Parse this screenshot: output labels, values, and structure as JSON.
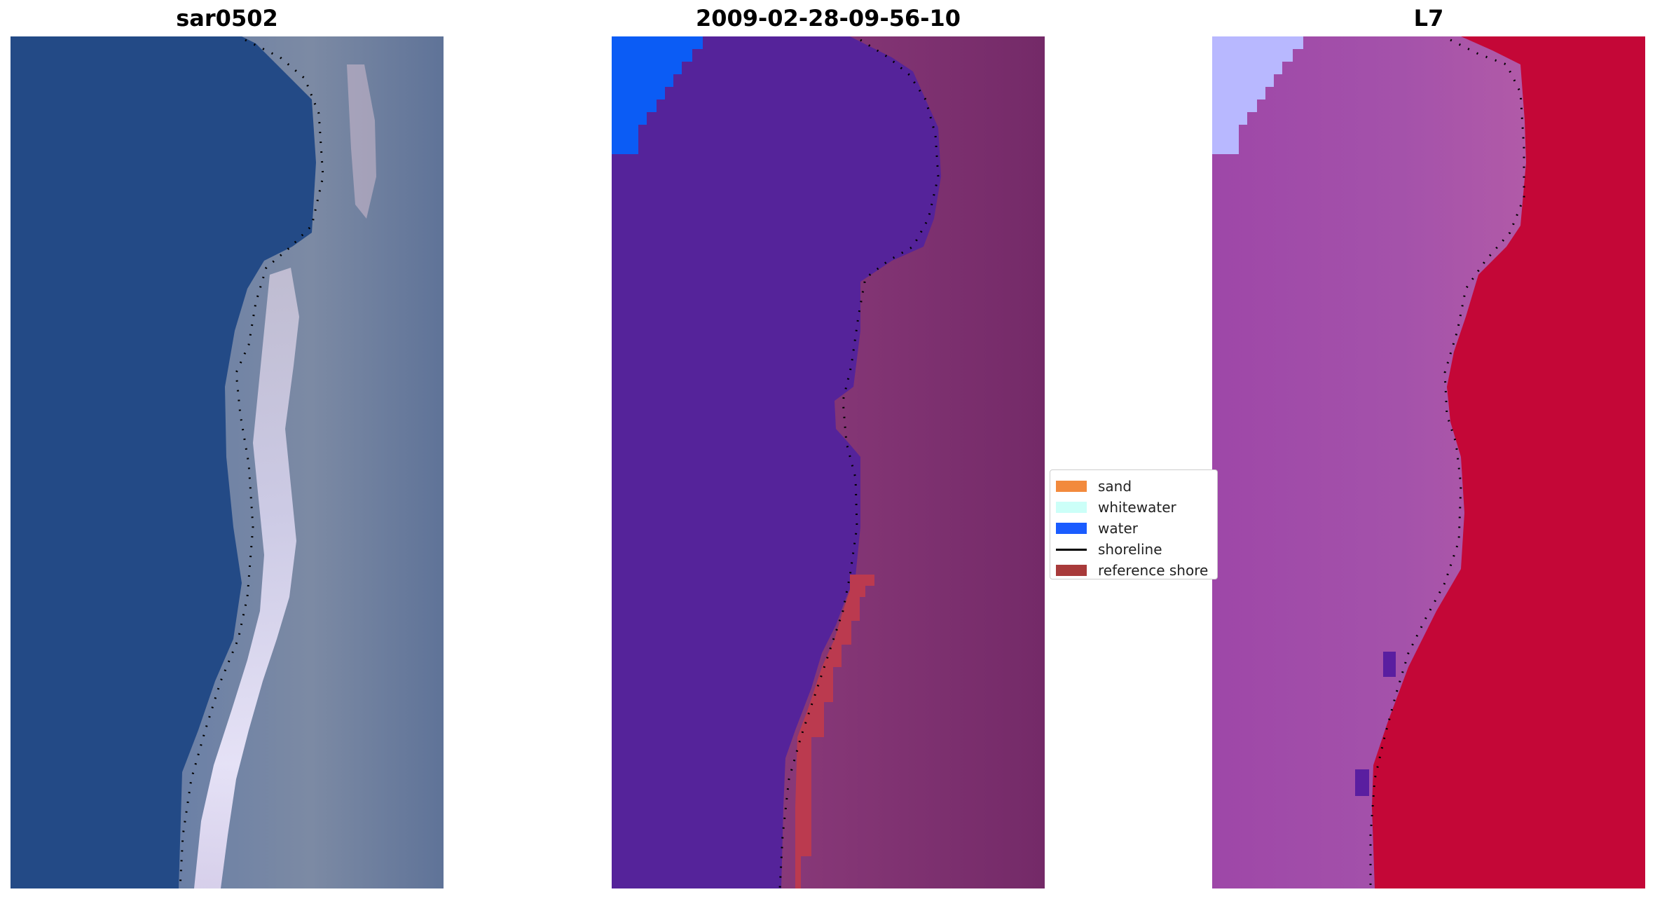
{
  "panels": [
    {
      "title": "sar0502"
    },
    {
      "title": "2009-02-28-09-56-10"
    },
    {
      "title": "L7"
    }
  ],
  "legend": {
    "items": [
      {
        "label": "sand",
        "color": "#f28a3d",
        "kind": "patch"
      },
      {
        "label": "whitewater",
        "color": "#ccfff8",
        "kind": "patch"
      },
      {
        "label": "water",
        "color": "#1a5cff",
        "kind": "patch"
      },
      {
        "label": "shoreline",
        "color": "#000000",
        "kind": "line"
      },
      {
        "label": "reference shore",
        "color": "#a83a3a",
        "kind": "patch"
      }
    ]
  },
  "colors": {
    "rgb_water": "#234a86",
    "rgb_land": "#6e7fa2",
    "rgb_beach": "#d9dcf2",
    "class_water": "#55239a",
    "class_water_bright": "#0b5cf5",
    "class_land": "#7a2f6e",
    "class_land_light": "#a24a8e",
    "class_reference": "#bb3a4f",
    "index_water": "#9a46a6",
    "index_water_light": "#b8b8ff",
    "index_land": "#c40737",
    "shoreline_dots": "#000000"
  }
}
